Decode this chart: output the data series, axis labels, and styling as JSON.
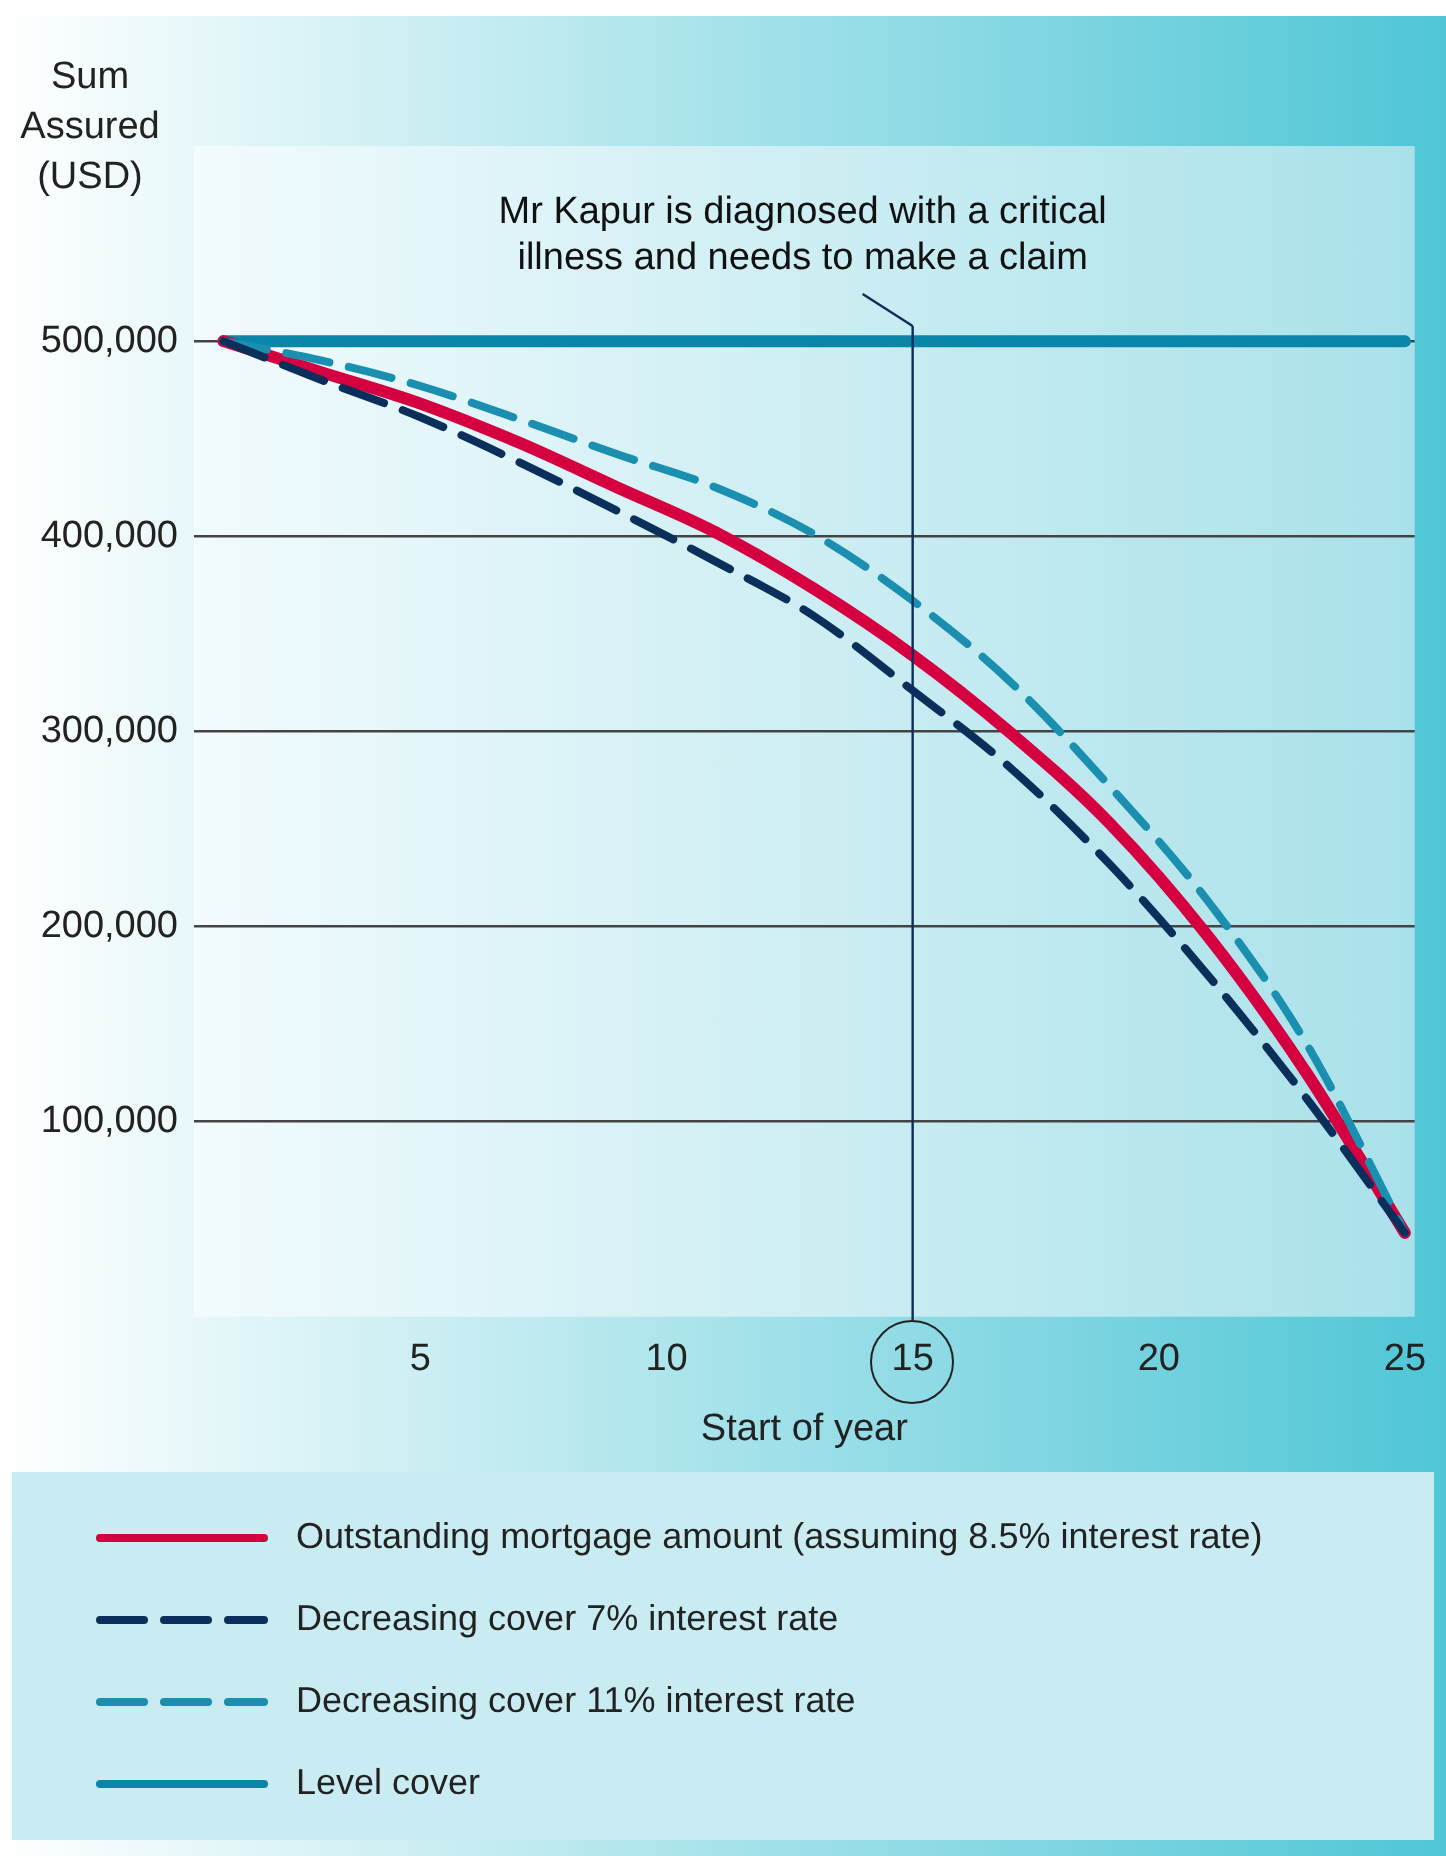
{
  "chart_data": {
    "type": "line",
    "ylabel": "Sum Assured (USD)",
    "xlabel": "Start of year",
    "x": [
      1,
      3,
      5,
      7,
      9,
      11,
      13,
      15,
      17,
      19,
      21,
      23,
      25
    ],
    "series": [
      {
        "name": "Outstanding mortgage amount (assuming 8.5% interest rate)",
        "color": "#d5003f",
        "line_style": "solid",
        "values": [
          500000,
          484000,
          468000,
          448000,
          425000,
          402000,
          373000,
          339000,
          299000,
          253000,
          195000,
          125000,
          43000
        ]
      },
      {
        "name": "Decreasing cover 7% interest rate",
        "color": "#0a2f5a",
        "line_style": "dashed",
        "values": [
          500000,
          480000,
          461000,
          438000,
          413000,
          387000,
          359000,
          321000,
          281000,
          232000,
          175000,
          112000,
          43000
        ]
      },
      {
        "name": "Decreasing cover 11% interest rate",
        "color": "#1a8fb0",
        "line_style": "dashed",
        "values": [
          500000,
          490000,
          477000,
          460000,
          442000,
          425000,
          401000,
          367000,
          325000,
          272000,
          213000,
          140000,
          43000
        ]
      },
      {
        "name": "Level cover",
        "color": "#0a86a8",
        "line_style": "solid",
        "x": [
          1,
          25
        ],
        "values": [
          500000,
          500000
        ]
      }
    ],
    "xlim": [
      0.4,
      25.2
    ],
    "xticks": [
      5,
      10,
      15,
      20,
      25
    ],
    "ylim": [
      0,
      600000
    ],
    "yticks": [
      {
        "value": 100000,
        "label": "100,000"
      },
      {
        "value": 200000,
        "label": "200,000"
      },
      {
        "value": 300000,
        "label": "300,000"
      },
      {
        "value": 400000,
        "label": "400,000"
      },
      {
        "value": 500000,
        "label": "500,000"
      }
    ],
    "grid": "y",
    "legend": "bottom",
    "marker": "none",
    "ref_lines": [
      {
        "axis": "x",
        "value": 15,
        "label": "Mr Kapur is diagnosed with a critical illness and needs to make a claim",
        "color": "#0a2f5a"
      }
    ]
  }
}
